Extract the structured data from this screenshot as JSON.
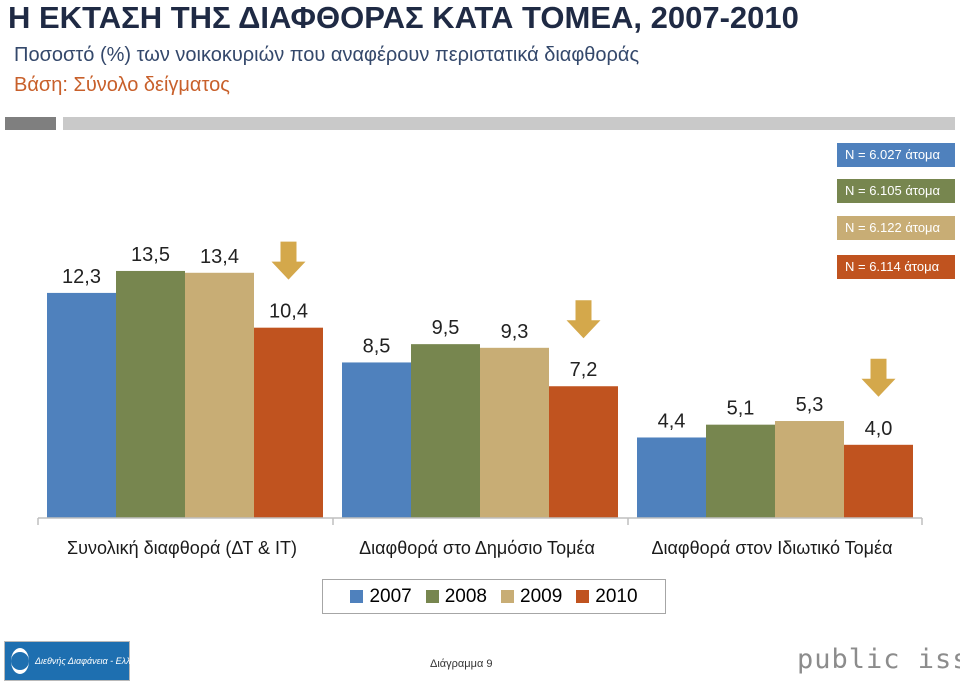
{
  "header": {
    "title": "Η ΕΚΤΑΣΗ ΤΗΣ ΔΙΑΦΘΟΡΑΣ ΚΑΤΑ ΤΟΜΕΑ, 2007-2010",
    "subtitle": "Ποσοστό (%) των νοικοκυριών που αναφέρουν περιστατικά διαφθοράς",
    "base": "Βάση: Σύνολο δείγματος"
  },
  "sample_sizes": [
    {
      "label": "N = 6.027 άτομα",
      "color": "#4f81bd"
    },
    {
      "label": "N = 6.105 άτομα",
      "color": "#77864f"
    },
    {
      "label": "N = 6.122 άτομα",
      "color": "#c8ad75"
    },
    {
      "label": "N = 6.114 άτομα",
      "color": "#c0531f"
    }
  ],
  "chart_data": {
    "type": "bar",
    "categories": [
      "Συνολική διαφθορά (ΔΤ & ΙΤ)",
      "Διαφθορά στο Δημόσιο Τομέα",
      "Διαφθορά στον Ιδιωτικό Τομέα"
    ],
    "series": [
      {
        "name": "2007",
        "color": "#4f81bd",
        "values": [
          12.3,
          8.5,
          4.4
        ],
        "labels": [
          "12,3",
          "8,5",
          "4,4"
        ]
      },
      {
        "name": "2008",
        "color": "#77864f",
        "values": [
          13.5,
          9.5,
          5.1
        ],
        "labels": [
          "13,5",
          "9,5",
          "5,1"
        ]
      },
      {
        "name": "2009",
        "color": "#c8ad75",
        "values": [
          13.4,
          9.3,
          5.3
        ],
        "labels": [
          "13,4",
          "9,3",
          "5,3"
        ]
      },
      {
        "name": "2010",
        "color": "#c0531f",
        "values": [
          10.4,
          7.2,
          4.0
        ],
        "labels": [
          "10,4",
          "7,2",
          "4,0"
        ]
      }
    ],
    "trend_markers": [
      "down",
      "down",
      "down"
    ],
    "arrow_color": "#d4a84b",
    "legend": "bottom",
    "grid": false,
    "ylim": [
      0,
      14
    ]
  },
  "footer": {
    "logo_left": "Διεθνής Διαφάνεια - Ελλάς",
    "diagram_label": "Διάγραμμα 9",
    "logo_right": "public issue"
  }
}
